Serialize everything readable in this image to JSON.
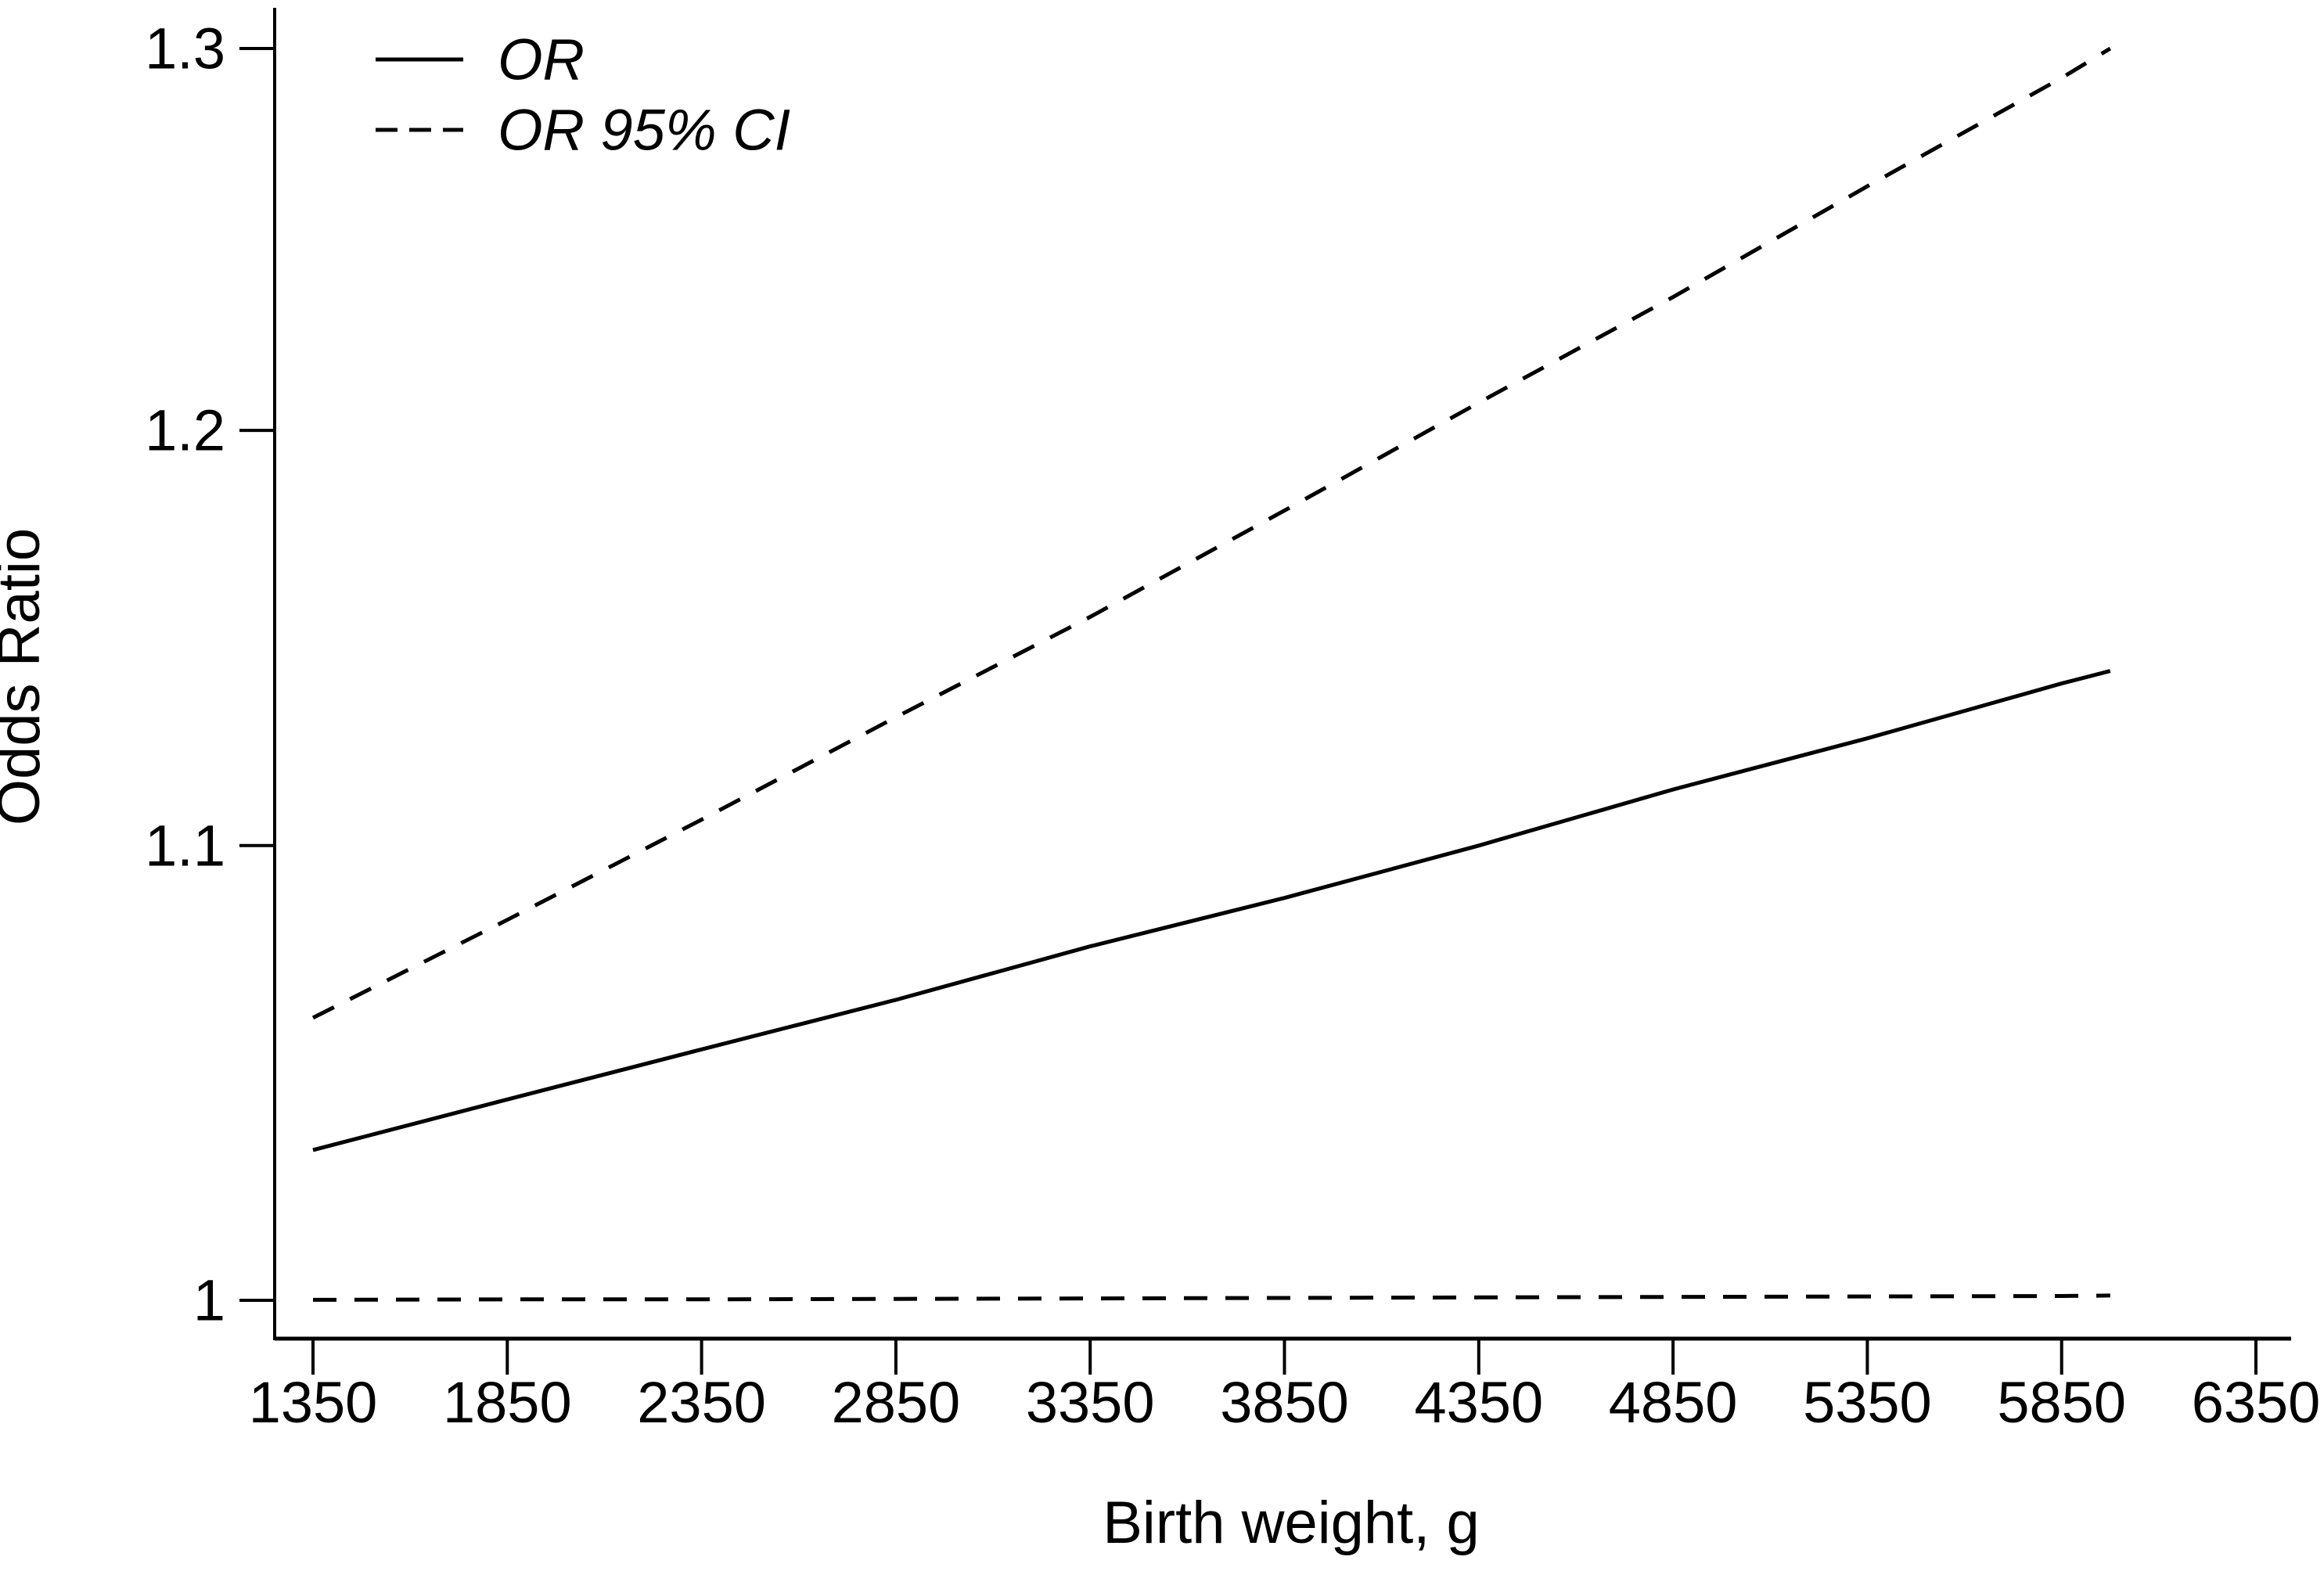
{
  "figure": {
    "y_axis": {
      "title": "Odds Ratio",
      "scale": "log",
      "tick_labels": [
        "1.3",
        "1.2",
        "1.1",
        "1"
      ],
      "tick_values": [
        1.3,
        1.2,
        1.1,
        1
      ]
    },
    "x_axis": {
      "title": "Birth weight, g",
      "tick_labels": [
        "1350",
        "1850",
        "2350",
        "2850",
        "3350",
        "3850",
        "4350",
        "4850",
        "5350",
        "5850",
        "6350"
      ],
      "tick_values": [
        1350,
        1850,
        2350,
        2850,
        3350,
        3850,
        4350,
        4850,
        5350,
        5850,
        6350
      ]
    },
    "legend": {
      "position": "top-left",
      "items": [
        {
          "label": "OR",
          "style": "solid"
        },
        {
          "label": "OR 95% CI",
          "style": "dashed"
        }
      ]
    },
    "colors": {
      "line": "#000000",
      "text": "#000000",
      "background": "#ffffff"
    }
  },
  "chart_data": {
    "type": "line",
    "title": "",
    "xlabel": "Birth weight, g",
    "ylabel": "Odds Ratio",
    "yscale": "log",
    "grid": false,
    "legend_position": "top-left",
    "xlim": [
      1250,
      6440
    ],
    "ylim": [
      1.0,
      1.31
    ],
    "x_ticks": [
      1350,
      1850,
      2350,
      2850,
      3350,
      3850,
      4350,
      4850,
      5350,
      5850,
      6350
    ],
    "y_ticks": [
      1,
      1.1,
      1.2,
      1.3
    ],
    "x": [
      1350,
      1850,
      2350,
      2850,
      3350,
      3850,
      4350,
      4850,
      5350,
      5850,
      5975
    ],
    "series": [
      {
        "name": "OR",
        "style": "solid",
        "values": [
          1.032,
          1.043,
          1.054,
          1.065,
          1.077,
          1.088,
          1.1,
          1.113,
          1.125,
          1.138,
          1.141
        ]
      },
      {
        "name": "OR 95% CI (upper)",
        "style": "dashed",
        "values": [
          1.061,
          1.083,
          1.106,
          1.13,
          1.154,
          1.18,
          1.207,
          1.234,
          1.263,
          1.292,
          1.3
        ]
      },
      {
        "name": "OR 95% CI (lower)",
        "style": "dashed",
        "values": [
          1.0001,
          1.0002,
          1.0002,
          1.0003,
          1.0004,
          1.0005,
          1.0006,
          1.0007,
          1.0008,
          1.0009,
          1.001
        ]
      }
    ]
  }
}
